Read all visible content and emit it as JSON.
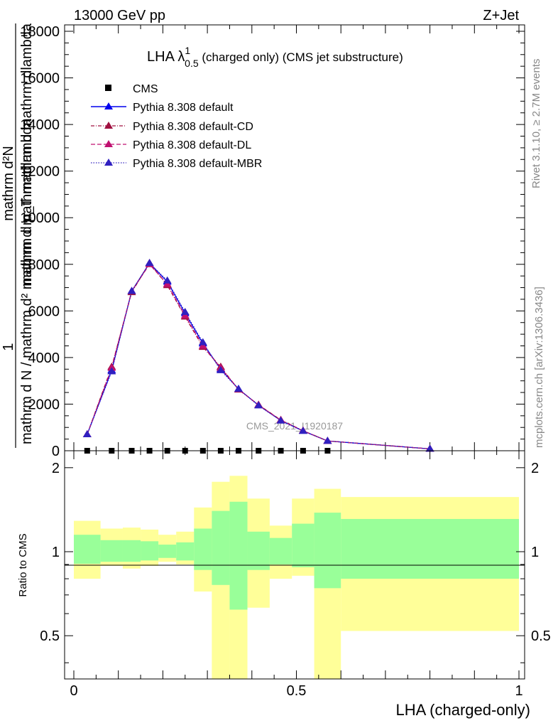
{
  "header": {
    "left": "13000 GeV pp",
    "right": "Z+Jet"
  },
  "side_labels": {
    "rivet": "Rivet 3.1.10, ≥ 2.7M events",
    "mcplots": "mcplots.cern.ch [arXiv:1306.3436]"
  },
  "chart_data": [
    {
      "type": "line",
      "title_main": "LHA λ",
      "title_sup": "1",
      "title_sub": "0.5",
      "title_rest": " (charged only) (CMS jet substructure)",
      "ylabel_top": "1",
      "ylabel_bottom": "mathrm d N / mathrm d² mathrm d mathrm dlambda",
      "ylabel_numerator": "mathrm d²N",
      "ylabel_den": "mathrm d p_T mathrm d mathrm dlambda",
      "ylim": [
        0,
        18000
      ],
      "yticks": [
        0,
        2000,
        4000,
        6000,
        8000,
        10000,
        12000,
        14000,
        16000,
        18000
      ],
      "ytick_labels": [
        "0",
        "2000",
        "4000",
        "6000",
        "8000",
        "10000",
        "12000",
        "14000",
        "16000",
        "18000"
      ],
      "xlim": [
        0,
        1
      ],
      "watermark": "CMS_2021_I1920187",
      "legend": {
        "cms": "CMS",
        "default": "Pythia 8.308 default",
        "cd": "Pythia 8.308 default-CD",
        "dl": "Pythia 8.308 default-DL",
        "mbr": "Pythia 8.308 default-MBR"
      },
      "legend_position": "top-left",
      "colors": {
        "cms": "#000000",
        "default": "#0000ee",
        "cd": "#a01040",
        "dl": "#c01070",
        "mbr": "#3020c0"
      },
      "cms_x": [
        0.03,
        0.085,
        0.13,
        0.17,
        0.21,
        0.25,
        0.29,
        0.33,
        0.37,
        0.415,
        0.465,
        0.515,
        0.57
      ],
      "cms_y": [
        0,
        0,
        0,
        0,
        0,
        0,
        0,
        0,
        0,
        0,
        0,
        0,
        0
      ],
      "series": [
        {
          "name": "Pythia 8.308 default",
          "x": [
            0.03,
            0.085,
            0.13,
            0.17,
            0.21,
            0.25,
            0.29,
            0.33,
            0.37,
            0.415,
            0.465,
            0.515,
            0.57,
            0.8
          ],
          "y": [
            700,
            3450,
            6850,
            8050,
            7250,
            5900,
            4600,
            3500,
            2650,
            1950,
            1300,
            850,
            420,
            80
          ]
        },
        {
          "name": "Pythia 8.308 default-CD",
          "x": [
            0.03,
            0.085,
            0.13,
            0.17,
            0.21,
            0.25,
            0.29,
            0.33,
            0.37,
            0.415,
            0.465,
            0.515,
            0.57,
            0.8
          ],
          "y": [
            700,
            3600,
            6800,
            8050,
            7100,
            5750,
            4450,
            3600,
            2620,
            1970,
            1320,
            860,
            420,
            80
          ]
        },
        {
          "name": "Pythia 8.308 default-DL",
          "x": [
            0.03,
            0.085,
            0.13,
            0.17,
            0.21,
            0.25,
            0.29,
            0.33,
            0.37,
            0.415,
            0.465,
            0.515,
            0.57,
            0.8
          ],
          "y": [
            700,
            3550,
            6850,
            8000,
            7150,
            5800,
            4500,
            3550,
            2640,
            1960,
            1310,
            855,
            420,
            80
          ]
        },
        {
          "name": "Pythia 8.308 default-MBR",
          "x": [
            0.03,
            0.085,
            0.13,
            0.17,
            0.21,
            0.25,
            0.29,
            0.33,
            0.37,
            0.415,
            0.465,
            0.515,
            0.57,
            0.8
          ],
          "y": [
            700,
            3400,
            6850,
            8050,
            7300,
            5950,
            4650,
            3450,
            2650,
            1940,
            1290,
            845,
            420,
            80
          ]
        }
      ]
    },
    {
      "type": "area",
      "ylabel": "Ratio to CMS",
      "xlabel": "LHA (charged-only)",
      "ylim": [
        0.35,
        2.3
      ],
      "scale": "log",
      "yticks": [
        0.5,
        1,
        2
      ],
      "ytick_labels": [
        "0.5",
        "1",
        "2"
      ],
      "xticks": [
        0,
        0.5,
        1
      ],
      "xtick_labels": [
        "0",
        "0.5",
        "1"
      ],
      "xlim": [
        0,
        1
      ],
      "colors": {
        "inner": "#99ff99",
        "outer": "#ffff99"
      },
      "bins": [
        {
          "x0": 0.0,
          "x1": 0.06,
          "inner": [
            0.905,
            1.15
          ],
          "outer": [
            0.8,
            1.29
          ]
        },
        {
          "x0": 0.06,
          "x1": 0.11,
          "inner": [
            0.92,
            1.1
          ],
          "outer": [
            0.89,
            1.21
          ]
        },
        {
          "x0": 0.11,
          "x1": 0.15,
          "inner": [
            0.92,
            1.1
          ],
          "outer": [
            0.87,
            1.22
          ]
        },
        {
          "x0": 0.15,
          "x1": 0.19,
          "inner": [
            0.93,
            1.09
          ],
          "outer": [
            0.89,
            1.2
          ]
        },
        {
          "x0": 0.19,
          "x1": 0.23,
          "inner": [
            0.95,
            1.06
          ],
          "outer": [
            0.92,
            1.15
          ]
        },
        {
          "x0": 0.23,
          "x1": 0.27,
          "inner": [
            0.93,
            1.08
          ],
          "outer": [
            0.9,
            1.18
          ]
        },
        {
          "x0": 0.27,
          "x1": 0.31,
          "inner": [
            0.86,
            1.21
          ],
          "outer": [
            0.72,
            1.44
          ]
        },
        {
          "x0": 0.31,
          "x1": 0.35,
          "inner": [
            0.76,
            1.4
          ],
          "outer": [
            0.35,
            1.78
          ]
        },
        {
          "x0": 0.35,
          "x1": 0.39,
          "inner": [
            0.62,
            1.51
          ],
          "outer": [
            0.35,
            1.87
          ]
        },
        {
          "x0": 0.39,
          "x1": 0.44,
          "inner": [
            0.86,
            1.18
          ],
          "outer": [
            0.63,
            1.55
          ]
        },
        {
          "x0": 0.44,
          "x1": 0.49,
          "inner": [
            0.9,
            1.12
          ],
          "outer": [
            0.8,
            1.24
          ]
        },
        {
          "x0": 0.49,
          "x1": 0.54,
          "inner": [
            0.88,
            1.26
          ],
          "outer": [
            0.82,
            1.55
          ]
        },
        {
          "x0": 0.54,
          "x1": 0.6,
          "inner": [
            0.74,
            1.38
          ],
          "outer": [
            0.35,
            1.68
          ]
        },
        {
          "x0": 0.6,
          "x1": 1.0,
          "inner": [
            0.8,
            1.31
          ],
          "outer": [
            0.52,
            1.57
          ]
        }
      ]
    }
  ]
}
